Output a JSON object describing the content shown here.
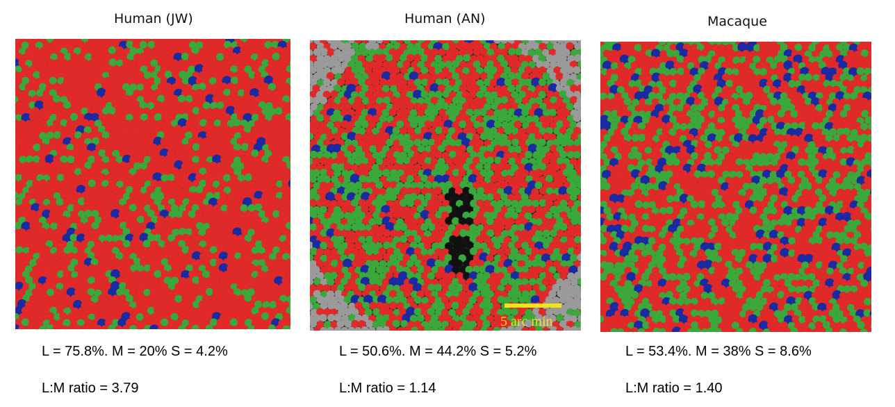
{
  "panels": [
    {
      "title": "Human (JW)",
      "stats": "L = 75.8%. M = 20%  S = 4.2%",
      "ratio": "L:M ratio = 3.79",
      "mosaic": {
        "l_fraction": 0.758,
        "m_fraction": 0.2,
        "s_fraction": 0.042
      }
    },
    {
      "title": "Human (AN)",
      "stats": "L = 50.6%. M = 44.2% S = 5.2%",
      "ratio": "L:M ratio = 1.14",
      "mosaic": {
        "l_fraction": 0.506,
        "m_fraction": 0.442,
        "s_fraction": 0.052
      },
      "scale_bar": {
        "label": "5 arc min"
      }
    },
    {
      "title": "Macaque",
      "stats": "L = 53.4%. M = 38% S = 8.6%",
      "ratio": "L:M ratio = 1.40",
      "mosaic": {
        "l_fraction": 0.534,
        "m_fraction": 0.38,
        "s_fraction": 0.086
      }
    }
  ],
  "colors": {
    "l_cone": "#e02a2a",
    "m_cone": "#3aa83a",
    "s_cone": "#1a2aa0",
    "scale_bar": "#f2e21a"
  }
}
